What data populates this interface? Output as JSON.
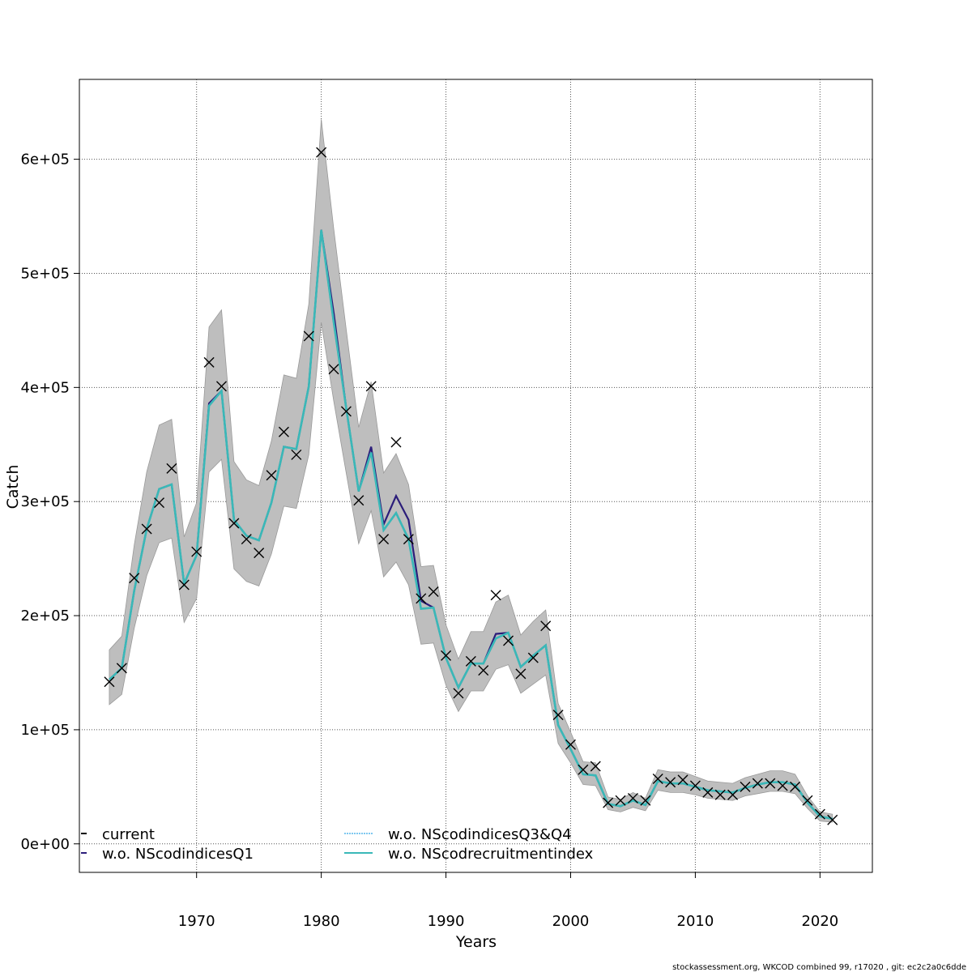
{
  "chart_data": {
    "type": "line",
    "title": "",
    "xlabel": "Years",
    "ylabel": "Catch",
    "xlim": [
      1960.6,
      2024.2
    ],
    "ylim": [
      -25000,
      670000
    ],
    "x_ticks": [
      1970,
      1980,
      1990,
      2000,
      2010,
      2020
    ],
    "y_ticks": [
      0,
      100000,
      200000,
      300000,
      400000,
      500000,
      600000
    ],
    "y_tick_labels": [
      "0e+00",
      "1e+05",
      "2e+05",
      "3e+05",
      "4e+05",
      "5e+05",
      "6e+05"
    ],
    "grid": true,
    "legend_placement": "bottom-left",
    "start_year": 1963,
    "units_multiplier": 1000,
    "observed": {
      "name": "observed catch",
      "marker": "x",
      "values": [
        142,
        154,
        233,
        276,
        299,
        329,
        227,
        256,
        422,
        401,
        281,
        267,
        255,
        323,
        361,
        341,
        445,
        606,
        416,
        379,
        301,
        401,
        267,
        352,
        267,
        215,
        221,
        165,
        132,
        160,
        152,
        218,
        178,
        149,
        163,
        191,
        113,
        87,
        65,
        68,
        36,
        38,
        40,
        38,
        57,
        54,
        56,
        51,
        45,
        43,
        43,
        50,
        53,
        53,
        51,
        50,
        38,
        26,
        21
      ]
    },
    "band": {
      "upper": [
        170,
        182,
        262,
        326,
        367,
        372,
        269,
        299,
        453,
        468,
        335,
        319,
        314,
        353,
        411,
        408,
        473,
        635,
        539,
        451,
        365,
        405,
        325,
        342,
        315,
        243,
        244,
        192,
        162,
        186,
        186,
        212,
        218,
        183,
        195,
        205,
        123,
        98,
        72,
        71,
        41,
        39,
        45,
        40,
        65,
        63,
        63,
        59,
        55,
        54,
        53,
        58,
        61,
        64,
        64,
        61,
        42,
        28,
        26
      ],
      "lower": [
        122,
        131,
        189,
        235,
        264,
        268,
        194,
        215,
        326,
        337,
        241,
        230,
        226,
        254,
        296,
        294,
        341,
        457,
        388,
        325,
        263,
        292,
        234,
        247,
        227,
        175,
        176,
        139,
        116,
        134,
        134,
        153,
        157,
        132,
        140,
        148,
        88,
        71,
        52,
        51,
        30,
        28,
        32,
        29,
        47,
        45,
        45,
        43,
        40,
        39,
        38,
        42,
        44,
        46,
        46,
        44,
        31,
        20,
        19
      ]
    },
    "series": [
      {
        "name": "current",
        "color": "#000000",
        "dash": "",
        "values": [
          144,
          154,
          222,
          276,
          311,
          315,
          228,
          253,
          384,
          397,
          284,
          270,
          266,
          299,
          348,
          346,
          401,
          538,
          457,
          382,
          309,
          343,
          275,
          290,
          267,
          206,
          207,
          163,
          137,
          158,
          158,
          180,
          185,
          155,
          165,
          174,
          104,
          83,
          61,
          60,
          35,
          33,
          38,
          34,
          55,
          53,
          53,
          50,
          47,
          46,
          45,
          49,
          52,
          54,
          54,
          52,
          36,
          24,
          22
        ]
      },
      {
        "name": "w.o. NScodindicesQ1",
        "color": "#2b1d7a",
        "dash": "",
        "values": [
          144,
          154,
          222,
          276,
          311,
          315,
          228,
          253,
          386,
          397,
          284,
          270,
          266,
          299,
          348,
          346,
          401,
          538,
          465,
          382,
          309,
          348,
          280,
          305,
          284,
          213,
          207,
          163,
          137,
          158,
          158,
          184,
          185,
          155,
          165,
          174,
          104,
          83,
          61,
          60,
          35,
          33,
          38,
          34,
          55,
          53,
          53,
          50,
          47,
          46,
          45,
          49,
          52,
          54,
          54,
          52,
          36,
          24,
          22
        ]
      },
      {
        "name": "w.o. NScodindicesQ3&Q4",
        "color": "#7fc8f0",
        "dash": "3,2",
        "values": [
          144,
          154,
          222,
          276,
          311,
          315,
          228,
          253,
          384,
          397,
          284,
          270,
          266,
          299,
          348,
          346,
          401,
          538,
          457,
          382,
          309,
          343,
          275,
          290,
          267,
          206,
          207,
          163,
          137,
          158,
          158,
          180,
          185,
          155,
          165,
          174,
          104,
          83,
          61,
          60,
          35,
          33,
          38,
          34,
          55,
          53,
          53,
          50,
          47,
          46,
          45,
          49,
          52,
          54,
          54,
          52,
          36,
          24,
          22
        ]
      },
      {
        "name": "w.o. NScodrecruitmentindex",
        "color": "#3ab8b8",
        "dash": "",
        "values": [
          144,
          154,
          222,
          276,
          311,
          315,
          228,
          253,
          384,
          397,
          284,
          270,
          266,
          299,
          348,
          346,
          401,
          538,
          457,
          382,
          309,
          343,
          275,
          290,
          267,
          206,
          207,
          163,
          137,
          158,
          158,
          180,
          185,
          155,
          165,
          174,
          104,
          83,
          61,
          60,
          35,
          33,
          38,
          34,
          55,
          53,
          53,
          50,
          47,
          46,
          45,
          49,
          52,
          54,
          54,
          52,
          36,
          24,
          22
        ]
      }
    ],
    "footnote": "stockassessment.org, WKCOD  combined  99, r17020 , git: ec2c2a0c6dde"
  }
}
